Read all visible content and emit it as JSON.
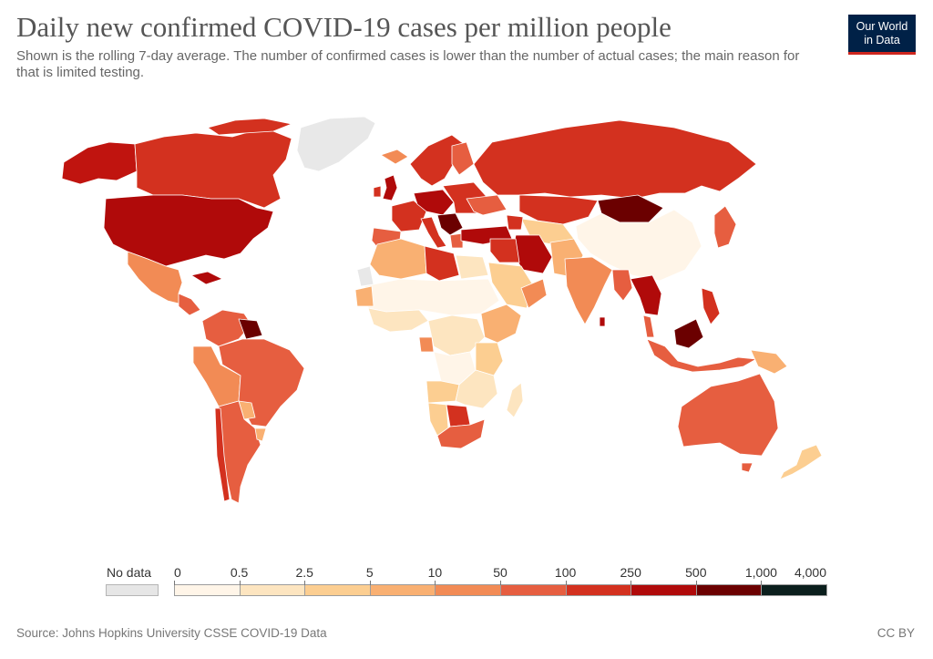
{
  "title": "Daily new confirmed COVID-19 cases per million people",
  "subtitle": "Shown is the rolling 7-day average. The number of confirmed cases is lower than the number of actual cases; the main reason for that is limited testing.",
  "logo": {
    "line1": "Our World",
    "line2": "in Data",
    "bg": "#002147",
    "accent": "#ce261e"
  },
  "legend": {
    "no_data_label": "No data",
    "no_data_color": "#e6e6e6",
    "bins": [
      {
        "from": "0",
        "color": "#fff5e8"
      },
      {
        "from": "0.5",
        "color": "#fde5c0"
      },
      {
        "from": "2.5",
        "color": "#fcce91"
      },
      {
        "from": "5",
        "color": "#f9b072"
      },
      {
        "from": "10",
        "color": "#f28b55"
      },
      {
        "from": "50",
        "color": "#e65e40"
      },
      {
        "from": "100",
        "color": "#d3311f"
      },
      {
        "from": "250",
        "color": "#b00a0a"
      },
      {
        "from": "500",
        "color": "#6b0000"
      },
      {
        "from": "1,000",
        "color": "#0b1f1d"
      }
    ],
    "last_label": "4,000"
  },
  "source": "Source: Johns Hopkins University CSSE COVID-19 Data",
  "license": "CC BY",
  "map_colors": {
    "ocean": "#ffffff",
    "border": "#ffffff"
  }
}
